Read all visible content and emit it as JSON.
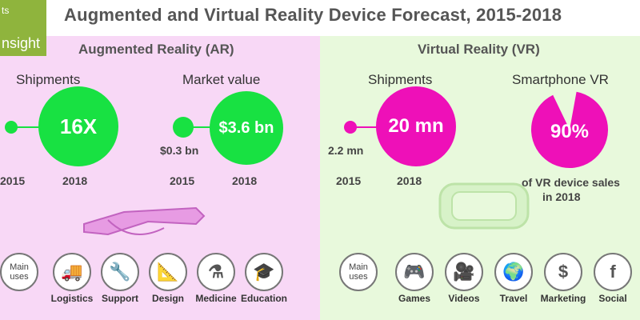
{
  "header": {
    "logo_text_top": "ts",
    "logo_text_bottom": "nsight",
    "title": "Augmented and Virtual Reality Device Forecast, 2015-2018"
  },
  "ar": {
    "title": "Augmented Reality (AR)",
    "shipments": {
      "label": "Shipments",
      "value": "16X",
      "year_start": "2015",
      "year_end": "2018"
    },
    "market": {
      "label": "Market value",
      "start_value": "$0.3 bn",
      "value": "$3.6 bn",
      "year_start": "2015",
      "year_end": "2018"
    },
    "uses_label": "Main uses",
    "uses": [
      {
        "name": "Logistics",
        "icon": "truck-icon",
        "glyph": "🚚"
      },
      {
        "name": "Support",
        "icon": "wrench-icon",
        "glyph": "🔧"
      },
      {
        "name": "Design",
        "icon": "drafting-icon",
        "glyph": "📐"
      },
      {
        "name": "Medicine",
        "icon": "flask-icon",
        "glyph": "⚗"
      },
      {
        "name": "Education",
        "icon": "mortarboard-icon",
        "glyph": "🎓"
      }
    ]
  },
  "vr": {
    "title": "Virtual Reality (VR)",
    "shipments": {
      "label": "Shipments",
      "start_value": "2.2 mn",
      "value": "20 mn",
      "year_start": "2015",
      "year_end": "2018"
    },
    "smartphone": {
      "label": "Smartphone VR",
      "value": "90%",
      "share": 0.9,
      "caption": [
        "of VR device sales",
        "in 2018"
      ]
    },
    "uses_label": "Main uses",
    "uses": [
      {
        "name": "Games",
        "icon": "gamepad-icon",
        "glyph": "🎮"
      },
      {
        "name": "Videos",
        "icon": "video-camera-icon",
        "glyph": "🎥"
      },
      {
        "name": "Travel",
        "icon": "globe-icon",
        "glyph": "🌍"
      },
      {
        "name": "Marketing",
        "icon": "dollar-icon",
        "glyph": "$"
      },
      {
        "name": "Social",
        "icon": "facebook-icon",
        "glyph": "f"
      }
    ]
  },
  "colors": {
    "ar_accent": "#18e142",
    "vr_accent": "#ee10b8",
    "ar_bg": "#f8d8f6",
    "vr_bg": "#e8f9dc"
  }
}
